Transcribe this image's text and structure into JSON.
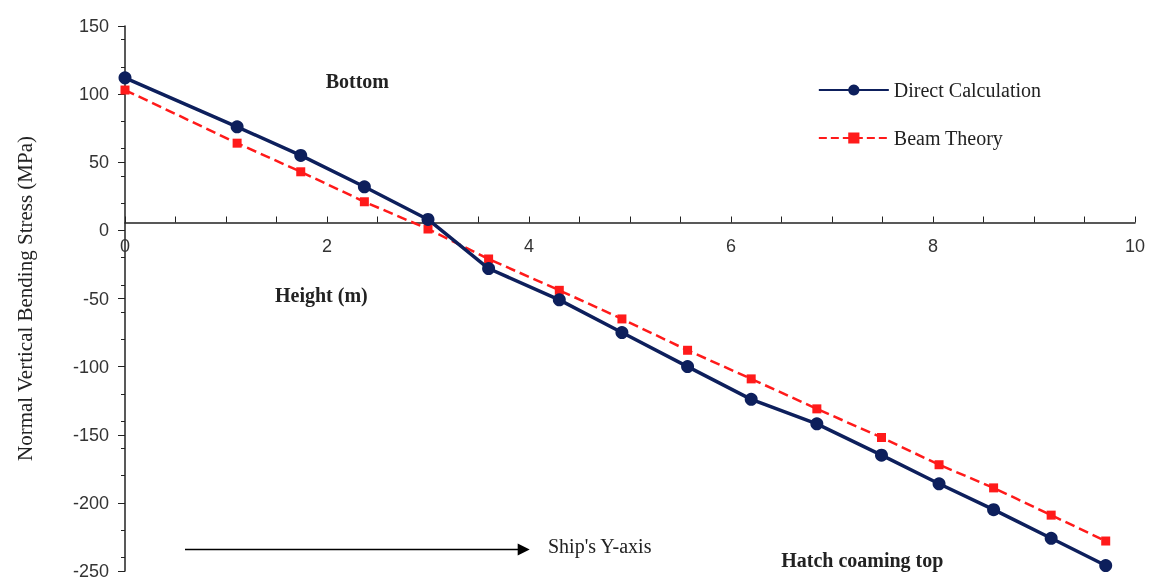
{
  "chart_data": {
    "type": "line",
    "xlabel": "Height (m)",
    "ylabel": "Normal Vertical Bending Stress (MPa)",
    "series": [
      {
        "name": "Direct Calculation",
        "color": "#0d1f5c",
        "marker": "circle",
        "line_style": "solid",
        "x": [
          0,
          1.11,
          1.74,
          2.37,
          3.0,
          3.6,
          4.3,
          4.92,
          5.57,
          6.2,
          6.85,
          7.49,
          8.06,
          8.6,
          9.17,
          9.71
        ],
        "values": [
          112,
          76,
          55,
          32,
          8,
          -28,
          -51,
          -75,
          -100,
          -124,
          -142,
          -165,
          -186,
          -205,
          -226,
          -246
        ]
      },
      {
        "name": "Beam Theory",
        "color": "#ff1a1a",
        "marker": "square",
        "line_style": "dashed",
        "x": [
          0,
          1.11,
          1.74,
          2.37,
          3.0,
          3.6,
          4.3,
          4.92,
          5.57,
          6.2,
          6.85,
          7.49,
          8.06,
          8.6,
          9.17,
          9.71
        ],
        "values": [
          103,
          64,
          43,
          21,
          1,
          -21,
          -44,
          -65,
          -88,
          -109,
          -131,
          -152,
          -172,
          -189,
          -209,
          -228
        ]
      }
    ],
    "xlim": [
      0,
      10
    ],
    "xticks": [
      0,
      {
        "value": 0.5,
        "label": null
      },
      {
        "value": 1,
        "label": null
      },
      {
        "value": 1.5,
        "label": null
      },
      2,
      {
        "value": 2.5,
        "label": null
      },
      {
        "value": 3,
        "label": null
      },
      {
        "value": 3.5,
        "label": null
      },
      4,
      {
        "value": 4.5,
        "label": null
      },
      {
        "value": 5,
        "label": null
      },
      {
        "value": 5.5,
        "label": null
      },
      6,
      {
        "value": 6.5,
        "label": null
      },
      {
        "value": 7,
        "label": null
      },
      {
        "value": 7.5,
        "label": null
      },
      8,
      {
        "value": 8.5,
        "label": null
      },
      {
        "value": 9,
        "label": null
      },
      {
        "value": 9.5,
        "label": null
      },
      10
    ],
    "ylim": [
      -250,
      150
    ],
    "yticks": [
      -250,
      -200,
      -150,
      -100,
      -50,
      0,
      50,
      100,
      150
    ],
    "legend": "top right",
    "annotations": [
      "Bottom",
      "Ship's Y-axis",
      "Hatch coaming top"
    ]
  }
}
